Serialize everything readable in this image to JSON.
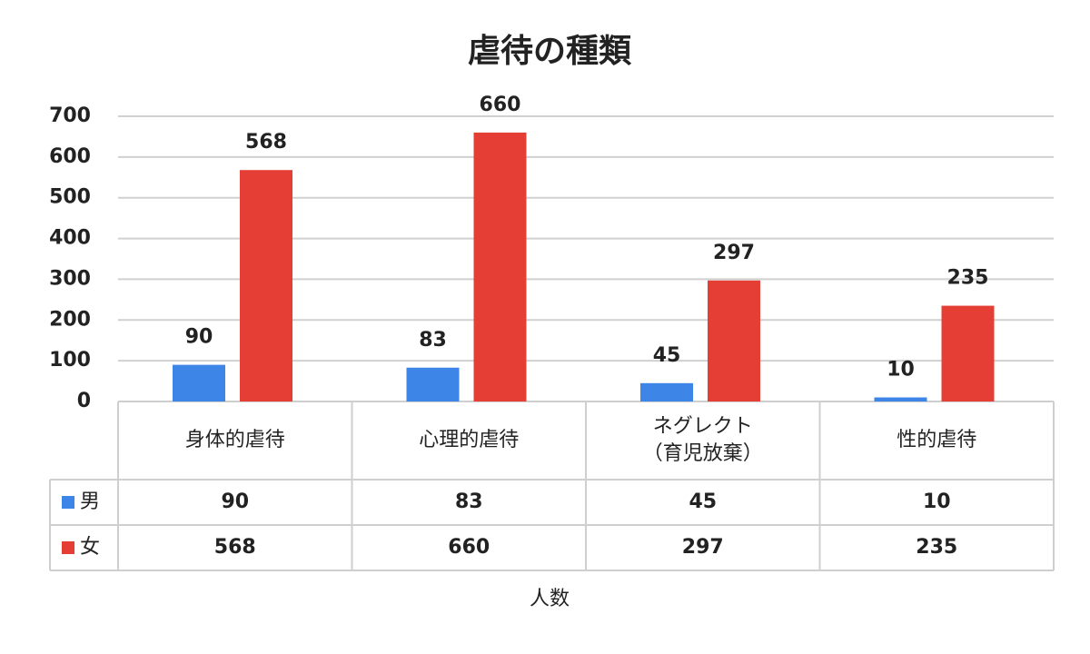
{
  "chart_data": {
    "type": "bar",
    "title": "虐待の種類",
    "categories": [
      "身体的虐待",
      "心理的虐待",
      "ネグレクト\n（育児放棄）",
      "性的虐待"
    ],
    "series": [
      {
        "name": "男",
        "color": "#3d85e6",
        "values": [
          90,
          83,
          45,
          10
        ]
      },
      {
        "name": "女",
        "color": "#e53f35",
        "values": [
          568,
          660,
          297,
          235
        ]
      }
    ],
    "x_label": "人数",
    "ylim": [
      0,
      700
    ],
    "yticks": [
      0,
      100,
      200,
      300,
      400,
      500,
      600,
      700
    ],
    "grid": true
  }
}
